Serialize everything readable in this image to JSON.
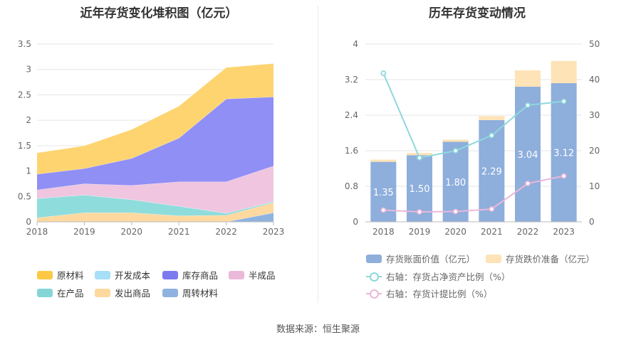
{
  "source": "数据来源：恒生聚源",
  "chart_data": [
    {
      "type": "area",
      "stacked": true,
      "title": "近年存货变化堆积图（亿元）",
      "x": [
        "2018",
        "2019",
        "2020",
        "2021",
        "2022",
        "2023"
      ],
      "ylim": [
        0,
        3.5
      ],
      "yticks": [
        "0",
        "0.5",
        "1",
        "1.5",
        "2",
        "2.5",
        "3",
        "3.5"
      ],
      "grid": true,
      "series": [
        {
          "name": "周转材料",
          "color": "#8fb3e0",
          "values": [
            0.0,
            0.0,
            0.0,
            0.0,
            0.0,
            0.18
          ]
        },
        {
          "name": "发出商品",
          "color": "#fdd9a0",
          "values": [
            0.08,
            0.18,
            0.18,
            0.12,
            0.13,
            0.2
          ]
        },
        {
          "name": "在产品",
          "color": "#8fdcdc",
          "values": [
            0.38,
            0.35,
            0.26,
            0.19,
            0.04,
            0.02
          ]
        },
        {
          "name": "开发成本",
          "color": "#a6dff7",
          "values": [
            0.0,
            0.0,
            0.0,
            0.0,
            0.0,
            0.0
          ]
        },
        {
          "name": "半成品",
          "color": "#efc5df",
          "values": [
            0.17,
            0.22,
            0.28,
            0.48,
            0.62,
            0.7
          ]
        },
        {
          "name": "库存商品",
          "color": "#8f8ff5",
          "values": [
            0.31,
            0.3,
            0.53,
            0.86,
            1.63,
            1.36
          ]
        },
        {
          "name": "原材料",
          "color": "#fdd470",
          "values": [
            0.42,
            0.45,
            0.57,
            0.63,
            0.62,
            0.66
          ]
        }
      ],
      "legend": {
        "placement": "bottom",
        "items": [
          {
            "label": "原材料",
            "color": "#fdc845"
          },
          {
            "label": "开发成本",
            "color": "#a6dff7"
          },
          {
            "label": "库存商品",
            "color": "#7b7bef"
          },
          {
            "label": "半成品",
            "color": "#eab8d8"
          },
          {
            "label": "在产品",
            "color": "#84d6d6"
          },
          {
            "label": "发出商品",
            "color": "#fdd9a0"
          },
          {
            "label": "周转材料",
            "color": "#8fb3e0"
          }
        ]
      }
    },
    {
      "type": "bar",
      "stacked": true,
      "title": "历年存货变动情况",
      "categories": [
        "2018",
        "2019",
        "2020",
        "2021",
        "2022",
        "2023"
      ],
      "ylim": [
        0,
        4
      ],
      "yticks": [
        "0",
        "0.8",
        "1.6",
        "2.4",
        "3.2",
        "4"
      ],
      "y2lim": [
        0,
        50
      ],
      "y2ticks": [
        "0",
        "10",
        "20",
        "30",
        "40",
        "50"
      ],
      "grid": true,
      "bars": [
        {
          "name": "存货账面价值（亿元）",
          "color": "#8eaedc",
          "values": [
            1.35,
            1.5,
            1.8,
            2.29,
            3.04,
            3.12
          ],
          "labels": [
            "1.35",
            "1.50",
            "1.80",
            "2.29",
            "3.04",
            "3.12"
          ]
        },
        {
          "name": "存货跌价准备（亿元）",
          "color": "#fde3b6",
          "values": [
            0.05,
            0.05,
            0.05,
            0.09,
            0.37,
            0.5
          ]
        }
      ],
      "lines": [
        {
          "name": "右轴：存货占净资产比例（%）",
          "color": "#8ed8dc",
          "axis": "right",
          "values": [
            41.8,
            18.0,
            20.0,
            24.3,
            32.8,
            33.9
          ]
        },
        {
          "name": "右轴：存货计提比例（%）",
          "color": "#eab8da",
          "axis": "right",
          "values": [
            3.3,
            2.8,
            2.9,
            3.6,
            10.8,
            12.9
          ]
        }
      ]
    }
  ]
}
